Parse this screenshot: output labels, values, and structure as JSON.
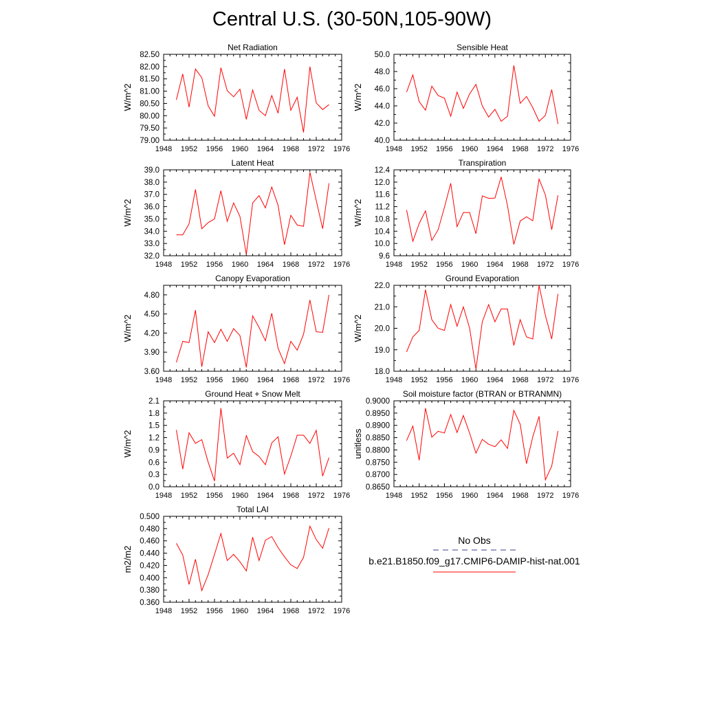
{
  "title": "Central U.S. (30-50N,105-90W)",
  "x_ticks": [
    "1948",
    "1952",
    "1956",
    "1960",
    "1964",
    "1968",
    "1972",
    "1976"
  ],
  "series_color": "#ff0000",
  "obs_color": "#3b3b8f",
  "legend": {
    "obs_label": "No Obs",
    "model_label": "b.e21.B1850.f09_g17.CMIP6-DAMIP-hist-nat.001"
  },
  "chart_data": [
    {
      "type": "line",
      "title": "Net Radiation",
      "ylabel": "W/m^2",
      "xlim": [
        1948,
        1976
      ],
      "ylim": [
        79.0,
        82.5
      ],
      "yticks": [
        "79.00",
        "79.50",
        "80.00",
        "80.50",
        "81.00",
        "81.50",
        "82.00",
        "82.50"
      ],
      "x": [
        1950,
        1951,
        1952,
        1953,
        1954,
        1955,
        1956,
        1957,
        1958,
        1959,
        1960,
        1961,
        1962,
        1963,
        1964,
        1965,
        1966,
        1967,
        1968,
        1969,
        1970,
        1971,
        1972,
        1973,
        1974
      ],
      "values": [
        80.65,
        81.7,
        80.35,
        81.9,
        81.55,
        80.4,
        79.98,
        81.95,
        81.02,
        80.77,
        81.08,
        79.85,
        81.05,
        80.22,
        80.0,
        80.82,
        80.1,
        81.9,
        80.22,
        80.75,
        79.32,
        82.0,
        80.52,
        80.25,
        80.45
      ]
    },
    {
      "type": "line",
      "title": "Sensible Heat",
      "ylabel": "W/m^2",
      "xlim": [
        1948,
        1976
      ],
      "ylim": [
        40.0,
        50.0
      ],
      "yticks": [
        "40.0",
        "42.0",
        "44.0",
        "46.0",
        "48.0",
        "50.0"
      ],
      "x": [
        1950,
        1951,
        1952,
        1953,
        1954,
        1955,
        1956,
        1957,
        1958,
        1959,
        1960,
        1961,
        1962,
        1963,
        1964,
        1965,
        1966,
        1967,
        1968,
        1969,
        1970,
        1971,
        1972,
        1973,
        1974
      ],
      "values": [
        45.6,
        47.6,
        44.5,
        43.5,
        46.3,
        45.2,
        44.9,
        42.8,
        45.6,
        43.7,
        45.4,
        46.5,
        44.0,
        42.7,
        43.6,
        42.2,
        42.8,
        48.7,
        44.3,
        45.1,
        43.8,
        42.2,
        42.9,
        45.9,
        41.9
      ]
    },
    {
      "type": "line",
      "title": "Latent Heat",
      "ylabel": "W/m^2",
      "xlim": [
        1948,
        1976
      ],
      "ylim": [
        32.0,
        39.0
      ],
      "yticks": [
        "32.0",
        "33.0",
        "34.0",
        "35.0",
        "36.0",
        "37.0",
        "38.0",
        "39.0"
      ],
      "x": [
        1950,
        1951,
        1952,
        1953,
        1954,
        1955,
        1956,
        1957,
        1958,
        1959,
        1960,
        1961,
        1962,
        1963,
        1964,
        1965,
        1966,
        1967,
        1968,
        1969,
        1970,
        1971,
        1972,
        1973,
        1974
      ],
      "values": [
        33.7,
        33.7,
        34.6,
        37.4,
        34.2,
        34.7,
        35.0,
        37.3,
        34.8,
        36.3,
        35.2,
        32.1,
        36.3,
        36.9,
        35.9,
        37.6,
        36.1,
        32.9,
        35.3,
        34.5,
        34.4,
        38.8,
        36.5,
        34.2,
        37.9
      ]
    },
    {
      "type": "line",
      "title": "Transpiration",
      "ylabel": "W/m^2",
      "xlim": [
        1948,
        1976
      ],
      "ylim": [
        9.6,
        12.4
      ],
      "yticks": [
        "9.6",
        "10.0",
        "10.4",
        "10.8",
        "11.2",
        "11.6",
        "12.0",
        "12.4"
      ],
      "x": [
        1950,
        1951,
        1952,
        1953,
        1954,
        1955,
        1956,
        1957,
        1958,
        1959,
        1960,
        1961,
        1962,
        1963,
        1964,
        1965,
        1966,
        1967,
        1968,
        1969,
        1970,
        1971,
        1972,
        1973,
        1974
      ],
      "values": [
        11.09,
        10.07,
        10.65,
        11.06,
        10.1,
        10.45,
        11.17,
        11.96,
        10.55,
        11.01,
        11.01,
        10.32,
        11.55,
        11.47,
        11.48,
        12.17,
        11.23,
        9.97,
        10.73,
        10.87,
        10.74,
        12.1,
        11.58,
        10.45,
        11.57
      ]
    },
    {
      "type": "line",
      "title": "Canopy Evaporation",
      "ylabel": "W/m^2",
      "xlim": [
        1948,
        1976
      ],
      "ylim": [
        3.6,
        4.95
      ],
      "yticks": [
        "3.60",
        "3.90",
        "4.20",
        "4.50",
        "4.80"
      ],
      "x": [
        1950,
        1951,
        1952,
        1953,
        1954,
        1955,
        1956,
        1957,
        1958,
        1959,
        1960,
        1961,
        1962,
        1963,
        1964,
        1965,
        1966,
        1967,
        1968,
        1969,
        1970,
        1971,
        1972,
        1973,
        1974
      ],
      "values": [
        3.74,
        4.07,
        4.05,
        4.56,
        3.67,
        4.22,
        4.05,
        4.26,
        4.07,
        4.27,
        4.16,
        3.66,
        4.47,
        4.29,
        4.08,
        4.51,
        3.96,
        3.72,
        4.07,
        3.93,
        4.18,
        4.72,
        4.22,
        4.21,
        4.8
      ]
    },
    {
      "type": "line",
      "title": "Ground Evaporation",
      "ylabel": "W/m^2",
      "xlim": [
        1948,
        1976
      ],
      "ylim": [
        18.0,
        22.0
      ],
      "yticks": [
        "18.0",
        "19.0",
        "20.0",
        "21.0",
        "22.0"
      ],
      "x": [
        1950,
        1951,
        1952,
        1953,
        1954,
        1955,
        1956,
        1957,
        1958,
        1959,
        1960,
        1961,
        1962,
        1963,
        1964,
        1965,
        1966,
        1967,
        1968,
        1969,
        1970,
        1971,
        1972,
        1973,
        1974
      ],
      "values": [
        18.9,
        19.6,
        19.9,
        21.8,
        20.4,
        20.0,
        19.9,
        21.1,
        20.1,
        21.0,
        20.0,
        18.1,
        20.3,
        21.1,
        20.3,
        20.9,
        20.9,
        19.2,
        20.4,
        19.6,
        19.5,
        22.0,
        20.6,
        19.5,
        21.6
      ]
    },
    {
      "type": "line",
      "title": "Ground Heat + Snow Melt",
      "ylabel": "W/m^2",
      "xlim": [
        1948,
        1976
      ],
      "ylim": [
        0.0,
        2.1
      ],
      "yticks": [
        "0.0",
        "0.3",
        "0.6",
        "0.9",
        "1.2",
        "1.5",
        "1.8",
        "2.1"
      ],
      "x": [
        1950,
        1951,
        1952,
        1953,
        1954,
        1955,
        1956,
        1957,
        1958,
        1959,
        1960,
        1961,
        1962,
        1963,
        1964,
        1965,
        1966,
        1967,
        1968,
        1969,
        1970,
        1971,
        1972,
        1973,
        1974
      ],
      "values": [
        1.39,
        0.43,
        1.32,
        1.06,
        1.15,
        0.6,
        0.14,
        1.92,
        0.7,
        0.82,
        0.54,
        1.25,
        0.86,
        0.74,
        0.54,
        1.07,
        1.22,
        0.31,
        0.75,
        1.26,
        1.26,
        1.06,
        1.38,
        0.26,
        0.71
      ]
    },
    {
      "type": "line",
      "title": "Soil moisture factor (BTRAN or BTRANMN)",
      "ylabel": "unitless",
      "xlim": [
        1948,
        1976
      ],
      "ylim": [
        0.865,
        0.9
      ],
      "yticks": [
        "0.8650",
        "0.8700",
        "0.8750",
        "0.8800",
        "0.8850",
        "0.8900",
        "0.8950",
        "0.9000"
      ],
      "x": [
        1950,
        1951,
        1952,
        1953,
        1954,
        1955,
        1956,
        1957,
        1958,
        1959,
        1960,
        1961,
        1962,
        1963,
        1964,
        1965,
        1966,
        1967,
        1968,
        1969,
        1970,
        1971,
        1972,
        1973,
        1974
      ],
      "values": [
        0.8838,
        0.8897,
        0.8758,
        0.897,
        0.8852,
        0.8876,
        0.8869,
        0.8944,
        0.8871,
        0.894,
        0.8868,
        0.8787,
        0.8843,
        0.8823,
        0.8813,
        0.8841,
        0.8806,
        0.8961,
        0.8905,
        0.8744,
        0.8853,
        0.8937,
        0.8678,
        0.8734,
        0.8877
      ]
    },
    {
      "type": "line",
      "title": "Total LAI",
      "ylabel": "m2/m2",
      "xlim": [
        1948,
        1976
      ],
      "ylim": [
        0.36,
        0.5
      ],
      "yticks": [
        "0.360",
        "0.380",
        "0.400",
        "0.420",
        "0.440",
        "0.460",
        "0.480",
        "0.500"
      ],
      "x": [
        1950,
        1951,
        1952,
        1953,
        1954,
        1955,
        1956,
        1957,
        1958,
        1959,
        1960,
        1961,
        1962,
        1963,
        1964,
        1965,
        1966,
        1967,
        1968,
        1969,
        1970,
        1971,
        1972,
        1973,
        1974
      ],
      "values": [
        0.456,
        0.437,
        0.389,
        0.43,
        0.379,
        0.405,
        0.438,
        0.472,
        0.428,
        0.438,
        0.426,
        0.411,
        0.466,
        0.428,
        0.461,
        0.467,
        0.449,
        0.434,
        0.421,
        0.415,
        0.433,
        0.484,
        0.462,
        0.448,
        0.481
      ]
    }
  ]
}
